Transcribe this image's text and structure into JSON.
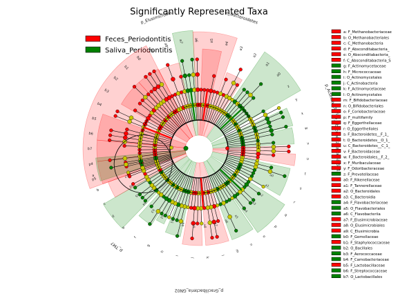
{
  "chart_data": {
    "type": "cladogram",
    "title": "Significantly Represented Taxa",
    "classes": [
      {
        "name": "Feces_Periodontitis",
        "color": "#ff0000"
      },
      {
        "name": "Saliva_Periodontitis",
        "color": "#008000"
      }
    ],
    "phylum_labels": [
      "p_Elusimicrobia",
      "p_Bacteroidetes",
      "p_Actinobacteria",
      "p_Absconditabacteria_SR1",
      "p_Gracilibacteria_GN02",
      "p_TM7"
    ],
    "sector_labels": [
      "p5",
      "p4",
      "b7",
      "b6",
      "b5",
      "b4",
      "b3",
      "b2",
      "b1",
      "b0",
      "a9",
      "a8",
      "a7",
      "a6",
      "a5",
      "a4",
      "a3",
      "a2",
      "a1",
      "a0",
      "z",
      "y",
      "x",
      "w",
      "v",
      "u",
      "t",
      "s",
      "r",
      "q",
      "p",
      "o",
      "n",
      "m",
      "l",
      "k",
      "j",
      "i",
      "h",
      "g",
      "f",
      "e",
      "d",
      "c",
      "b",
      "a"
    ],
    "ring_labels": [
      "a0",
      "a1",
      "a2",
      "a3",
      "a4",
      "a5",
      "a6",
      "a7",
      "a8",
      "a9",
      "b0",
      "b1",
      "b2",
      "b3",
      "b4",
      "b5",
      "b6",
      "b7"
    ],
    "key": [
      {
        "code": "a",
        "label": "F_Methanobacteriaceae",
        "class": 0
      },
      {
        "code": "b",
        "label": "O_Methanobacteriales",
        "class": 0
      },
      {
        "code": "c",
        "label": "C_Methanobacteria",
        "class": 0
      },
      {
        "code": "d",
        "label": "F_Absconditabacteria_",
        "class": 0
      },
      {
        "code": "e",
        "label": "O_Absconditabacteria_",
        "class": 0
      },
      {
        "code": "f",
        "label": "C_Absconditabacteria_S",
        "class": 0
      },
      {
        "code": "g",
        "label": "F_Actinomycetaceae",
        "class": 1
      },
      {
        "code": "h",
        "label": "F_Micrococcaceae",
        "class": 1
      },
      {
        "code": "i",
        "label": "O_Actinomycetales",
        "class": 1
      },
      {
        "code": "j",
        "label": "C_Actinobacteria",
        "class": 1
      },
      {
        "code": "k",
        "label": "F_Actinomycetaceae",
        "class": 1
      },
      {
        "code": "l",
        "label": "O_Actinomycetales",
        "class": 1
      },
      {
        "code": "m",
        "label": "F_Bifidobacteriaceae",
        "class": 0
      },
      {
        "code": "n",
        "label": "O_Bifidobacteriales",
        "class": 0
      },
      {
        "code": "o",
        "label": "F_Coriobacteriaceae",
        "class": 0
      },
      {
        "code": "p",
        "label": "F_multifamily",
        "class": 0
      },
      {
        "code": "q",
        "label": "F_Eggerthellaceae",
        "class": 0
      },
      {
        "code": "r",
        "label": "O_Eggerthellales",
        "class": 0
      },
      {
        "code": "s",
        "label": "F_Bacteroidetes__F_1_",
        "class": 0
      },
      {
        "code": "t",
        "label": "O_Bacteroidetes__O_1_",
        "class": 0
      },
      {
        "code": "u",
        "label": "C_Bacteroidetes__C_1_",
        "class": 0
      },
      {
        "code": "v",
        "label": "F_Bacteroidaceae",
        "class": 0
      },
      {
        "code": "w",
        "label": "F_Bacteroidales__F_2_",
        "class": 0
      },
      {
        "code": "x",
        "label": "F_Muribaculaceae",
        "class": 0
      },
      {
        "code": "y",
        "label": "F_Odoribacteraceae",
        "class": 0
      },
      {
        "code": "z",
        "label": "F_Prevotellaceae",
        "class": 1
      },
      {
        "code": "a0",
        "label": "F_Rikenellaceae",
        "class": 0
      },
      {
        "code": "a1",
        "label": "F_Tannerellaceae",
        "class": 0
      },
      {
        "code": "a2",
        "label": "O_Bacteroidales",
        "class": 0
      },
      {
        "code": "a3",
        "label": "C_Bacteroidia",
        "class": 0
      },
      {
        "code": "a4",
        "label": "F_Flavobacteriaceae",
        "class": 1
      },
      {
        "code": "a5",
        "label": "O_Flavobacteriales",
        "class": 1
      },
      {
        "code": "a6",
        "label": "C_Flavobacteriia",
        "class": 1
      },
      {
        "code": "a7",
        "label": "F_Elusimicrobiaceae",
        "class": 0
      },
      {
        "code": "a8",
        "label": "O_Elusimicrobiales",
        "class": 0
      },
      {
        "code": "a9",
        "label": "C_Elusimicrobia",
        "class": 0
      },
      {
        "code": "b0",
        "label": "F_Gemellaceae",
        "class": 1
      },
      {
        "code": "b1",
        "label": "F_Staphylococcaceae",
        "class": 0
      },
      {
        "code": "b2",
        "label": "O_Bacillales",
        "class": 1
      },
      {
        "code": "b3",
        "label": "F_Aerococcaceae",
        "class": 1
      },
      {
        "code": "b4",
        "label": "F_Carnobacteriaceae",
        "class": 1
      },
      {
        "code": "b5",
        "label": "F_Lactobacillaceae",
        "class": 0
      },
      {
        "code": "b6",
        "label": "F_Streptococcaceae",
        "class": 1
      },
      {
        "code": "b7",
        "label": "O_Lactobacillales",
        "class": 1
      }
    ],
    "colors": {
      "feces_fill": "#ff0000",
      "saliva_fill": "#008000",
      "neutral_node": "#c8c800",
      "edge": "#000000"
    }
  }
}
